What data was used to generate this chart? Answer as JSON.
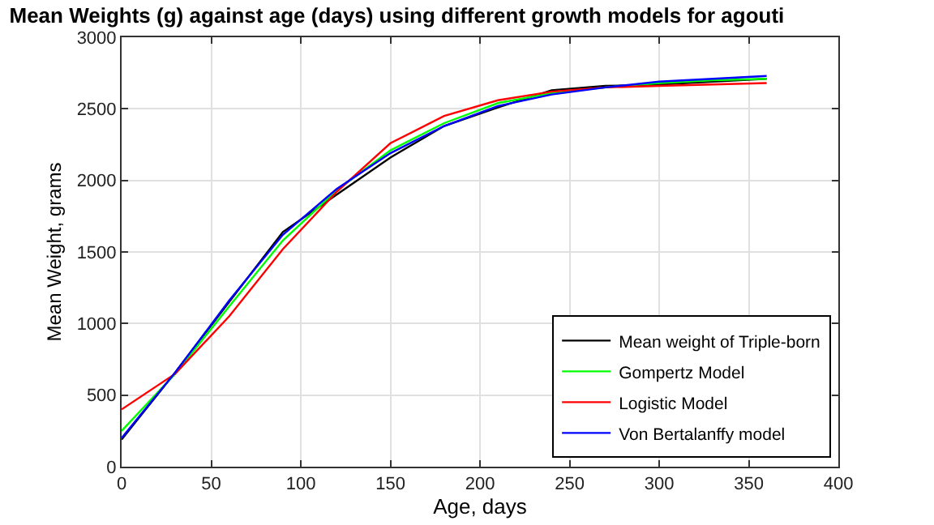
{
  "chart_data": {
    "type": "line",
    "title": "Mean Weights (g) against age (days) using different growth models for agouti",
    "xlabel": "Age, days",
    "ylabel": "Mean Weight, grams",
    "x": [
      0,
      30,
      60,
      90,
      120,
      150,
      180,
      210,
      240,
      270,
      300,
      330,
      360
    ],
    "series": [
      {
        "name": "Mean weight of Triple-born",
        "color": "#000000",
        "values": [
          190,
          660,
          1150,
          1640,
          1900,
          2160,
          2380,
          2510,
          2630,
          2660,
          2670,
          2690,
          2710
        ]
      },
      {
        "name": "Gompertz Model",
        "color": "#00ff00",
        "values": [
          250,
          650,
          1120,
          1580,
          1930,
          2210,
          2400,
          2540,
          2610,
          2650,
          2680,
          2700,
          2710
        ]
      },
      {
        "name": "Logistic Model",
        "color": "#ff0000",
        "values": [
          400,
          650,
          1050,
          1520,
          1920,
          2260,
          2450,
          2560,
          2620,
          2650,
          2660,
          2670,
          2680
        ]
      },
      {
        "name": "Von Bertalanffy model",
        "color": "#0000ff",
        "values": [
          200,
          660,
          1160,
          1620,
          1940,
          2190,
          2380,
          2520,
          2600,
          2650,
          2690,
          2710,
          2730
        ]
      }
    ],
    "xlim": [
      0,
      400
    ],
    "xticks": [
      0,
      50,
      100,
      150,
      200,
      250,
      300,
      350,
      400
    ],
    "ylim": [
      0,
      3000
    ],
    "yticks": [
      0,
      500,
      1000,
      1500,
      2000,
      2500,
      3000
    ],
    "grid": true,
    "legend": "bottom right",
    "marker": "none",
    "line_style": "solid"
  }
}
